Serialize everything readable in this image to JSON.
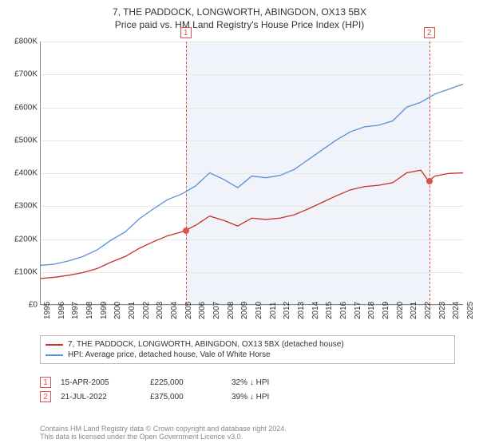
{
  "title": {
    "main": "7, THE PADDOCK, LONGWORTH, ABINGDON, OX13 5BX",
    "sub": "Price paid vs. HM Land Registry's House Price Index (HPI)",
    "fontsize_main": 12,
    "fontsize_sub": 12
  },
  "chart": {
    "type": "line",
    "background_color": "#ffffff",
    "shaded_background_color": "#f0f4fa",
    "grid_color": "#e8e8e8",
    "axis_color": "#888888",
    "x": {
      "min": 1995,
      "max": 2025,
      "tick_step": 1,
      "ticks": [
        1995,
        1996,
        1997,
        1998,
        1999,
        2000,
        2001,
        2002,
        2003,
        2004,
        2005,
        2006,
        2007,
        2008,
        2009,
        2010,
        2011,
        2012,
        2013,
        2014,
        2015,
        2016,
        2017,
        2018,
        2019,
        2020,
        2021,
        2022,
        2023,
        2024,
        2025
      ],
      "label_fontsize": 10
    },
    "y": {
      "min": 0,
      "max": 800000,
      "tick_step": 100000,
      "ticks": [
        "£0",
        "£100K",
        "£200K",
        "£300K",
        "£400K",
        "£500K",
        "£600K",
        "£700K",
        "£800K"
      ],
      "label_fontsize": 10
    },
    "shaded_region": {
      "x_start": 2005.29,
      "x_end": 2022.55
    },
    "series": [
      {
        "name": "7, THE PADDOCK, LONGWORTH, ABINGDON, OX13 5BX (detached house)",
        "color": "#c9302c",
        "line_width": 1.3,
        "points": [
          [
            1995,
            78
          ],
          [
            1996,
            82
          ],
          [
            1997,
            88
          ],
          [
            1998,
            96
          ],
          [
            1999,
            108
          ],
          [
            2000,
            128
          ],
          [
            2001,
            145
          ],
          [
            2002,
            170
          ],
          [
            2003,
            190
          ],
          [
            2004,
            208
          ],
          [
            2005,
            220
          ],
          [
            2005.29,
            225
          ],
          [
            2006,
            240
          ],
          [
            2007,
            268
          ],
          [
            2008,
            255
          ],
          [
            2009,
            238
          ],
          [
            2010,
            262
          ],
          [
            2011,
            258
          ],
          [
            2012,
            262
          ],
          [
            2013,
            272
          ],
          [
            2014,
            290
          ],
          [
            2015,
            310
          ],
          [
            2016,
            330
          ],
          [
            2017,
            348
          ],
          [
            2018,
            358
          ],
          [
            2019,
            362
          ],
          [
            2020,
            370
          ],
          [
            2021,
            400
          ],
          [
            2022,
            408
          ],
          [
            2022.55,
            375
          ],
          [
            2023,
            390
          ],
          [
            2024,
            398
          ],
          [
            2025,
            400
          ]
        ]
      },
      {
        "name": "HPI: Average price, detached house, Vale of White Horse",
        "color": "#5b8fd6",
        "line_width": 1.3,
        "points": [
          [
            1995,
            118
          ],
          [
            1996,
            122
          ],
          [
            1997,
            132
          ],
          [
            1998,
            145
          ],
          [
            1999,
            165
          ],
          [
            2000,
            195
          ],
          [
            2001,
            220
          ],
          [
            2002,
            260
          ],
          [
            2003,
            290
          ],
          [
            2004,
            318
          ],
          [
            2005,
            335
          ],
          [
            2006,
            360
          ],
          [
            2007,
            400
          ],
          [
            2008,
            380
          ],
          [
            2009,
            355
          ],
          [
            2010,
            390
          ],
          [
            2011,
            385
          ],
          [
            2012,
            392
          ],
          [
            2013,
            410
          ],
          [
            2014,
            440
          ],
          [
            2015,
            470
          ],
          [
            2016,
            500
          ],
          [
            2017,
            525
          ],
          [
            2018,
            540
          ],
          [
            2019,
            545
          ],
          [
            2020,
            558
          ],
          [
            2021,
            600
          ],
          [
            2022,
            615
          ],
          [
            2023,
            640
          ],
          [
            2024,
            655
          ],
          [
            2025,
            670
          ]
        ]
      }
    ],
    "markers": [
      {
        "label": "1",
        "x": 2005.29,
        "y": 225,
        "color": "#d9534f"
      },
      {
        "label": "2",
        "x": 2022.55,
        "y": 375,
        "color": "#d9534f"
      }
    ],
    "vertical_lines": [
      {
        "x": 2005.29,
        "color": "#d9534f",
        "dash": true
      },
      {
        "x": 2022.55,
        "color": "#d9534f",
        "dash": true
      }
    ]
  },
  "legend": {
    "border_color": "#bbbbbb",
    "fontsize": 10,
    "items": [
      {
        "color": "#c9302c",
        "label": "7, THE PADDOCK, LONGWORTH, ABINGDON, OX13 5BX (detached house)"
      },
      {
        "color": "#5b8fd6",
        "label": "HPI: Average price, detached house, Vale of White Horse"
      }
    ]
  },
  "data_points": [
    {
      "badge": "1",
      "date": "15-APR-2005",
      "price": "£225,000",
      "hpi": "32% ↓ HPI"
    },
    {
      "badge": "2",
      "date": "21-JUL-2022",
      "price": "£375,000",
      "hpi": "39% ↓ HPI"
    }
  ],
  "footer": {
    "line1": "Contains HM Land Registry data © Crown copyright and database right 2024.",
    "line2": "This data is licensed under the Open Government Licence v3.0.",
    "color": "#888888",
    "fontsize": 9
  }
}
